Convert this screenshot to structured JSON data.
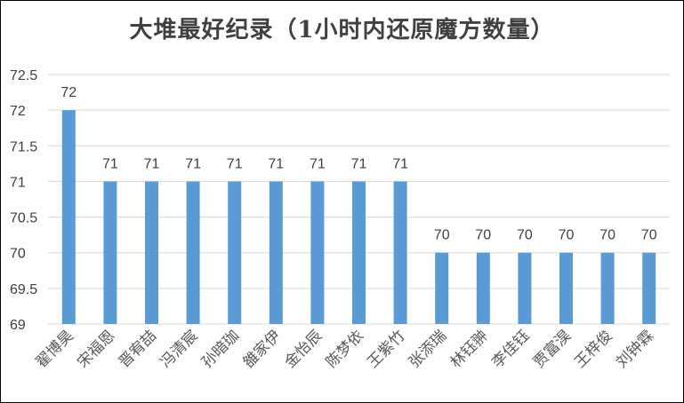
{
  "chart_data": {
    "type": "bar",
    "title": "大堆最好纪录（1小时内还原魔方数量）",
    "categories": [
      "翟博昊",
      "宋福恩",
      "晋宥喆",
      "冯清宸",
      "孙暗珈",
      "雒家伊",
      "金怡辰",
      "陈梦依",
      "王紫竹",
      "张添瑞",
      "林钰翀",
      "李佳钰",
      "贾富淏",
      "王梓俊",
      "刘钟霖"
    ],
    "values": [
      72,
      71,
      71,
      71,
      71,
      71,
      71,
      71,
      71,
      70,
      70,
      70,
      70,
      70,
      70
    ],
    "data_labels": [
      "72",
      "71",
      "71",
      "71",
      "71",
      "71",
      "71",
      "71",
      "71",
      "70",
      "70",
      "70",
      "70",
      "70",
      "70"
    ],
    "y_ticks": [
      "69",
      "69.5",
      "70",
      "70.5",
      "71",
      "71.5",
      "72",
      "72.5"
    ],
    "ylim": [
      69,
      72.5
    ],
    "grid": true,
    "legend": "none",
    "bar_color": "#5B9BD5",
    "grid_color": "#D9D9D9"
  }
}
